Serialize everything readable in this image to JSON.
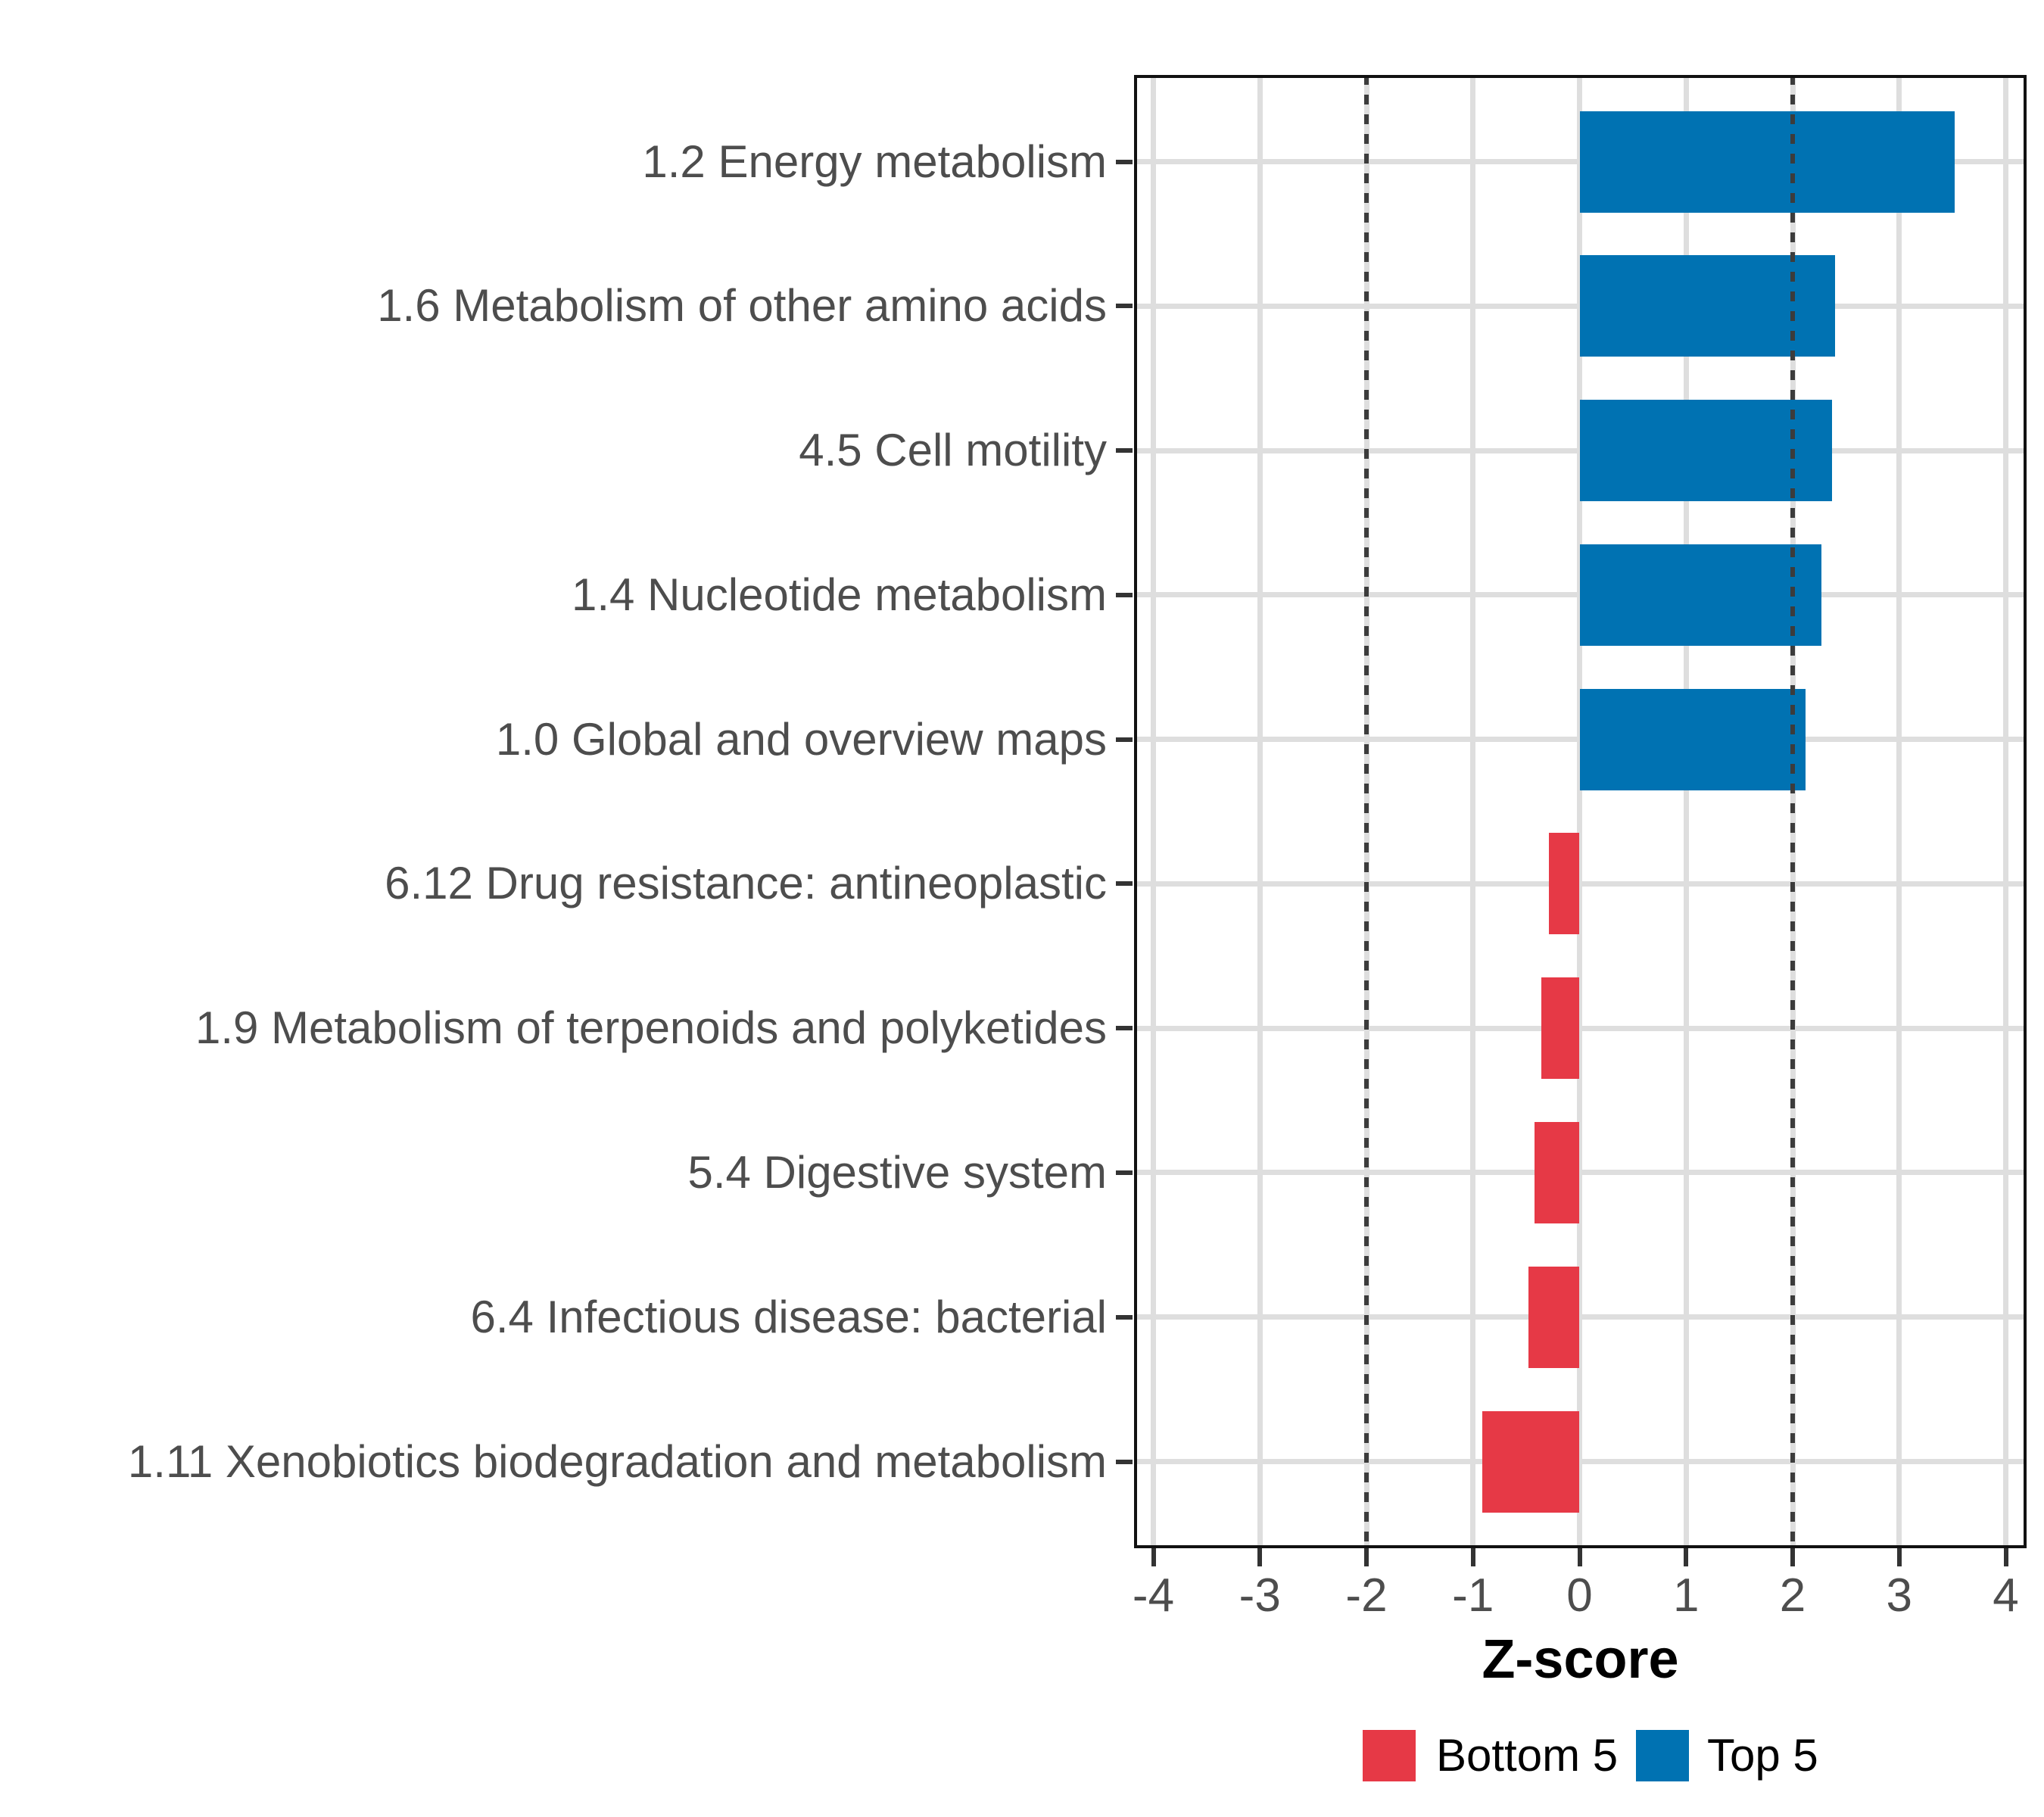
{
  "chart_data": {
    "type": "bar",
    "orientation": "horizontal",
    "title": "",
    "xlabel": "Z-score",
    "ylabel": "",
    "xlim": [
      -4.2,
      4.2
    ],
    "x_ticks": [
      -4,
      -3,
      -2,
      -1,
      0,
      1,
      2,
      3,
      4
    ],
    "x_tick_labels": [
      "-4",
      "-3",
      "-2",
      "-1",
      "0",
      "1",
      "2",
      "3",
      "4"
    ],
    "reference_lines": [
      -2,
      2
    ],
    "grid": "light vertical lines at each integer, light horizontal line at each category center",
    "bars": [
      {
        "category": "1.2 Energy metabolism",
        "value": 3.52,
        "group": "Top 5"
      },
      {
        "category": "1.6 Metabolism of other amino acids",
        "value": 2.4,
        "group": "Top 5"
      },
      {
        "category": "4.5 Cell motility",
        "value": 2.37,
        "group": "Top 5"
      },
      {
        "category": "1.4 Nucleotide metabolism",
        "value": 2.27,
        "group": "Top 5"
      },
      {
        "category": "1.0 Global and overview maps",
        "value": 2.12,
        "group": "Top 5"
      },
      {
        "category": "6.12 Drug resistance: antineoplastic",
        "value": -0.29,
        "group": "Bottom 5"
      },
      {
        "category": "1.9 Metabolism of terpenoids and polyketides",
        "value": -0.36,
        "group": "Bottom 5"
      },
      {
        "category": "5.4 Digestive system",
        "value": -0.42,
        "group": "Bottom 5"
      },
      {
        "category": "6.4 Infectious disease: bacterial",
        "value": -0.48,
        "group": "Bottom 5"
      },
      {
        "category": "1.11 Xenobiotics biodegradation and metabolism",
        "value": -0.91,
        "group": "Bottom 5"
      }
    ],
    "legend": {
      "position": "bottom",
      "entries": [
        {
          "label": "Bottom 5",
          "color": "#E63946"
        },
        {
          "label": "Top 5",
          "color": "#0072B2"
        }
      ]
    },
    "colors": {
      "top5_bar": "#0072B2",
      "bottom5_bar": "#E63946",
      "grid": "#DEDEDE",
      "reference_line": "#3C3C3C",
      "axis_text": "#4D4D4D",
      "axis_title": "#000000",
      "panel_border": "#111111",
      "background": "#FFFFFF"
    }
  }
}
